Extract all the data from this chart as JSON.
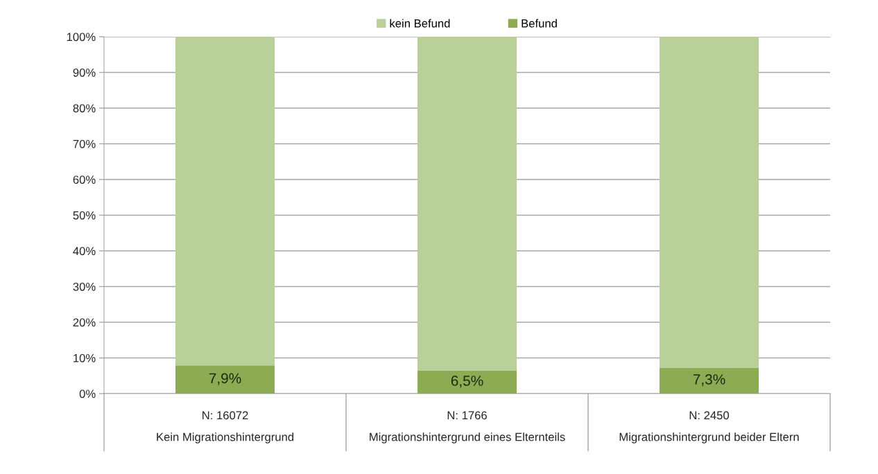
{
  "chart_data": {
    "type": "bar",
    "stacked": true,
    "categories": [
      "N: 16072\nKein Migrationshintergrund",
      "N: 1766\nMigrationshintergrund eines Elternteils",
      "N: 2450\nMigrationshintergrund beider Eltern"
    ],
    "series": [
      {
        "name": "Befund",
        "color": "#8cab53",
        "values": [
          7.9,
          6.5,
          7.3
        ],
        "value_labels": [
          "7,9%",
          "6,5%",
          "7,3%"
        ]
      },
      {
        "name": "kein Befund",
        "color": "#bad09a",
        "values": [
          92.1,
          93.5,
          92.7
        ]
      }
    ],
    "ylim": [
      0,
      100
    ],
    "yticks": [
      {
        "value": 0,
        "label": "0%"
      },
      {
        "value": 10,
        "label": "10%"
      },
      {
        "value": 20,
        "label": "20%"
      },
      {
        "value": 30,
        "label": "30%"
      },
      {
        "value": 40,
        "label": "40%"
      },
      {
        "value": 50,
        "label": "50%"
      },
      {
        "value": 60,
        "label": "60%"
      },
      {
        "value": 70,
        "label": "70%"
      },
      {
        "value": 80,
        "label": "80%"
      },
      {
        "value": 90,
        "label": "90%"
      },
      {
        "value": 100,
        "label": "100%"
      }
    ],
    "grid": "y",
    "legend": "top"
  }
}
